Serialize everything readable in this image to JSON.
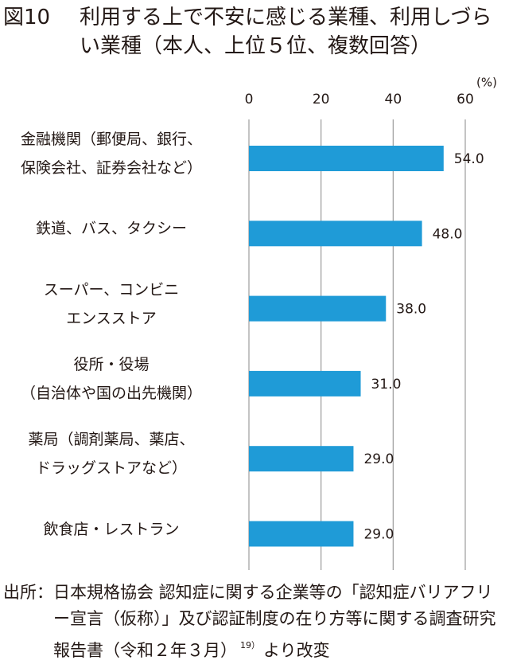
{
  "chart_data": {
    "type": "hbar",
    "figure_label": "図10",
    "title": "利用する上で不安に感じる業種、利用しづらい業種（本人、上位５位、複数回答）",
    "x_unit": "(%)",
    "categories": [
      "金融機関（郵便局、銀行、\n保険会社、証券会社など）",
      "鉄道、バス、タクシー",
      "スーパー、コンビニ\nエンスストア",
      "役所・役場\n（自治体や国の出先機関）",
      "薬局（調剤薬局、薬店、\nドラッグストアなど）",
      "飲食店・レストラン"
    ],
    "values": [
      54.0,
      48.0,
      38.0,
      31.0,
      29.0,
      29.0
    ],
    "value_labels": [
      "54.0",
      "48.0",
      "38.0",
      "31.0",
      "29.0",
      "29.0"
    ],
    "color": "#1f9bd7",
    "xlim": [
      0,
      60
    ],
    "xticks": [
      0,
      20,
      40,
      60
    ],
    "grid": true,
    "source": {
      "label": "出所：",
      "text": "日本規格協会 認知症に関する企業等の「認知症バリアフリー宣言（仮称）」及び認証制度の在り方等に関する調査研究報告書（令和２年３月）",
      "ref": "19）",
      "suffix": "より改変"
    }
  }
}
